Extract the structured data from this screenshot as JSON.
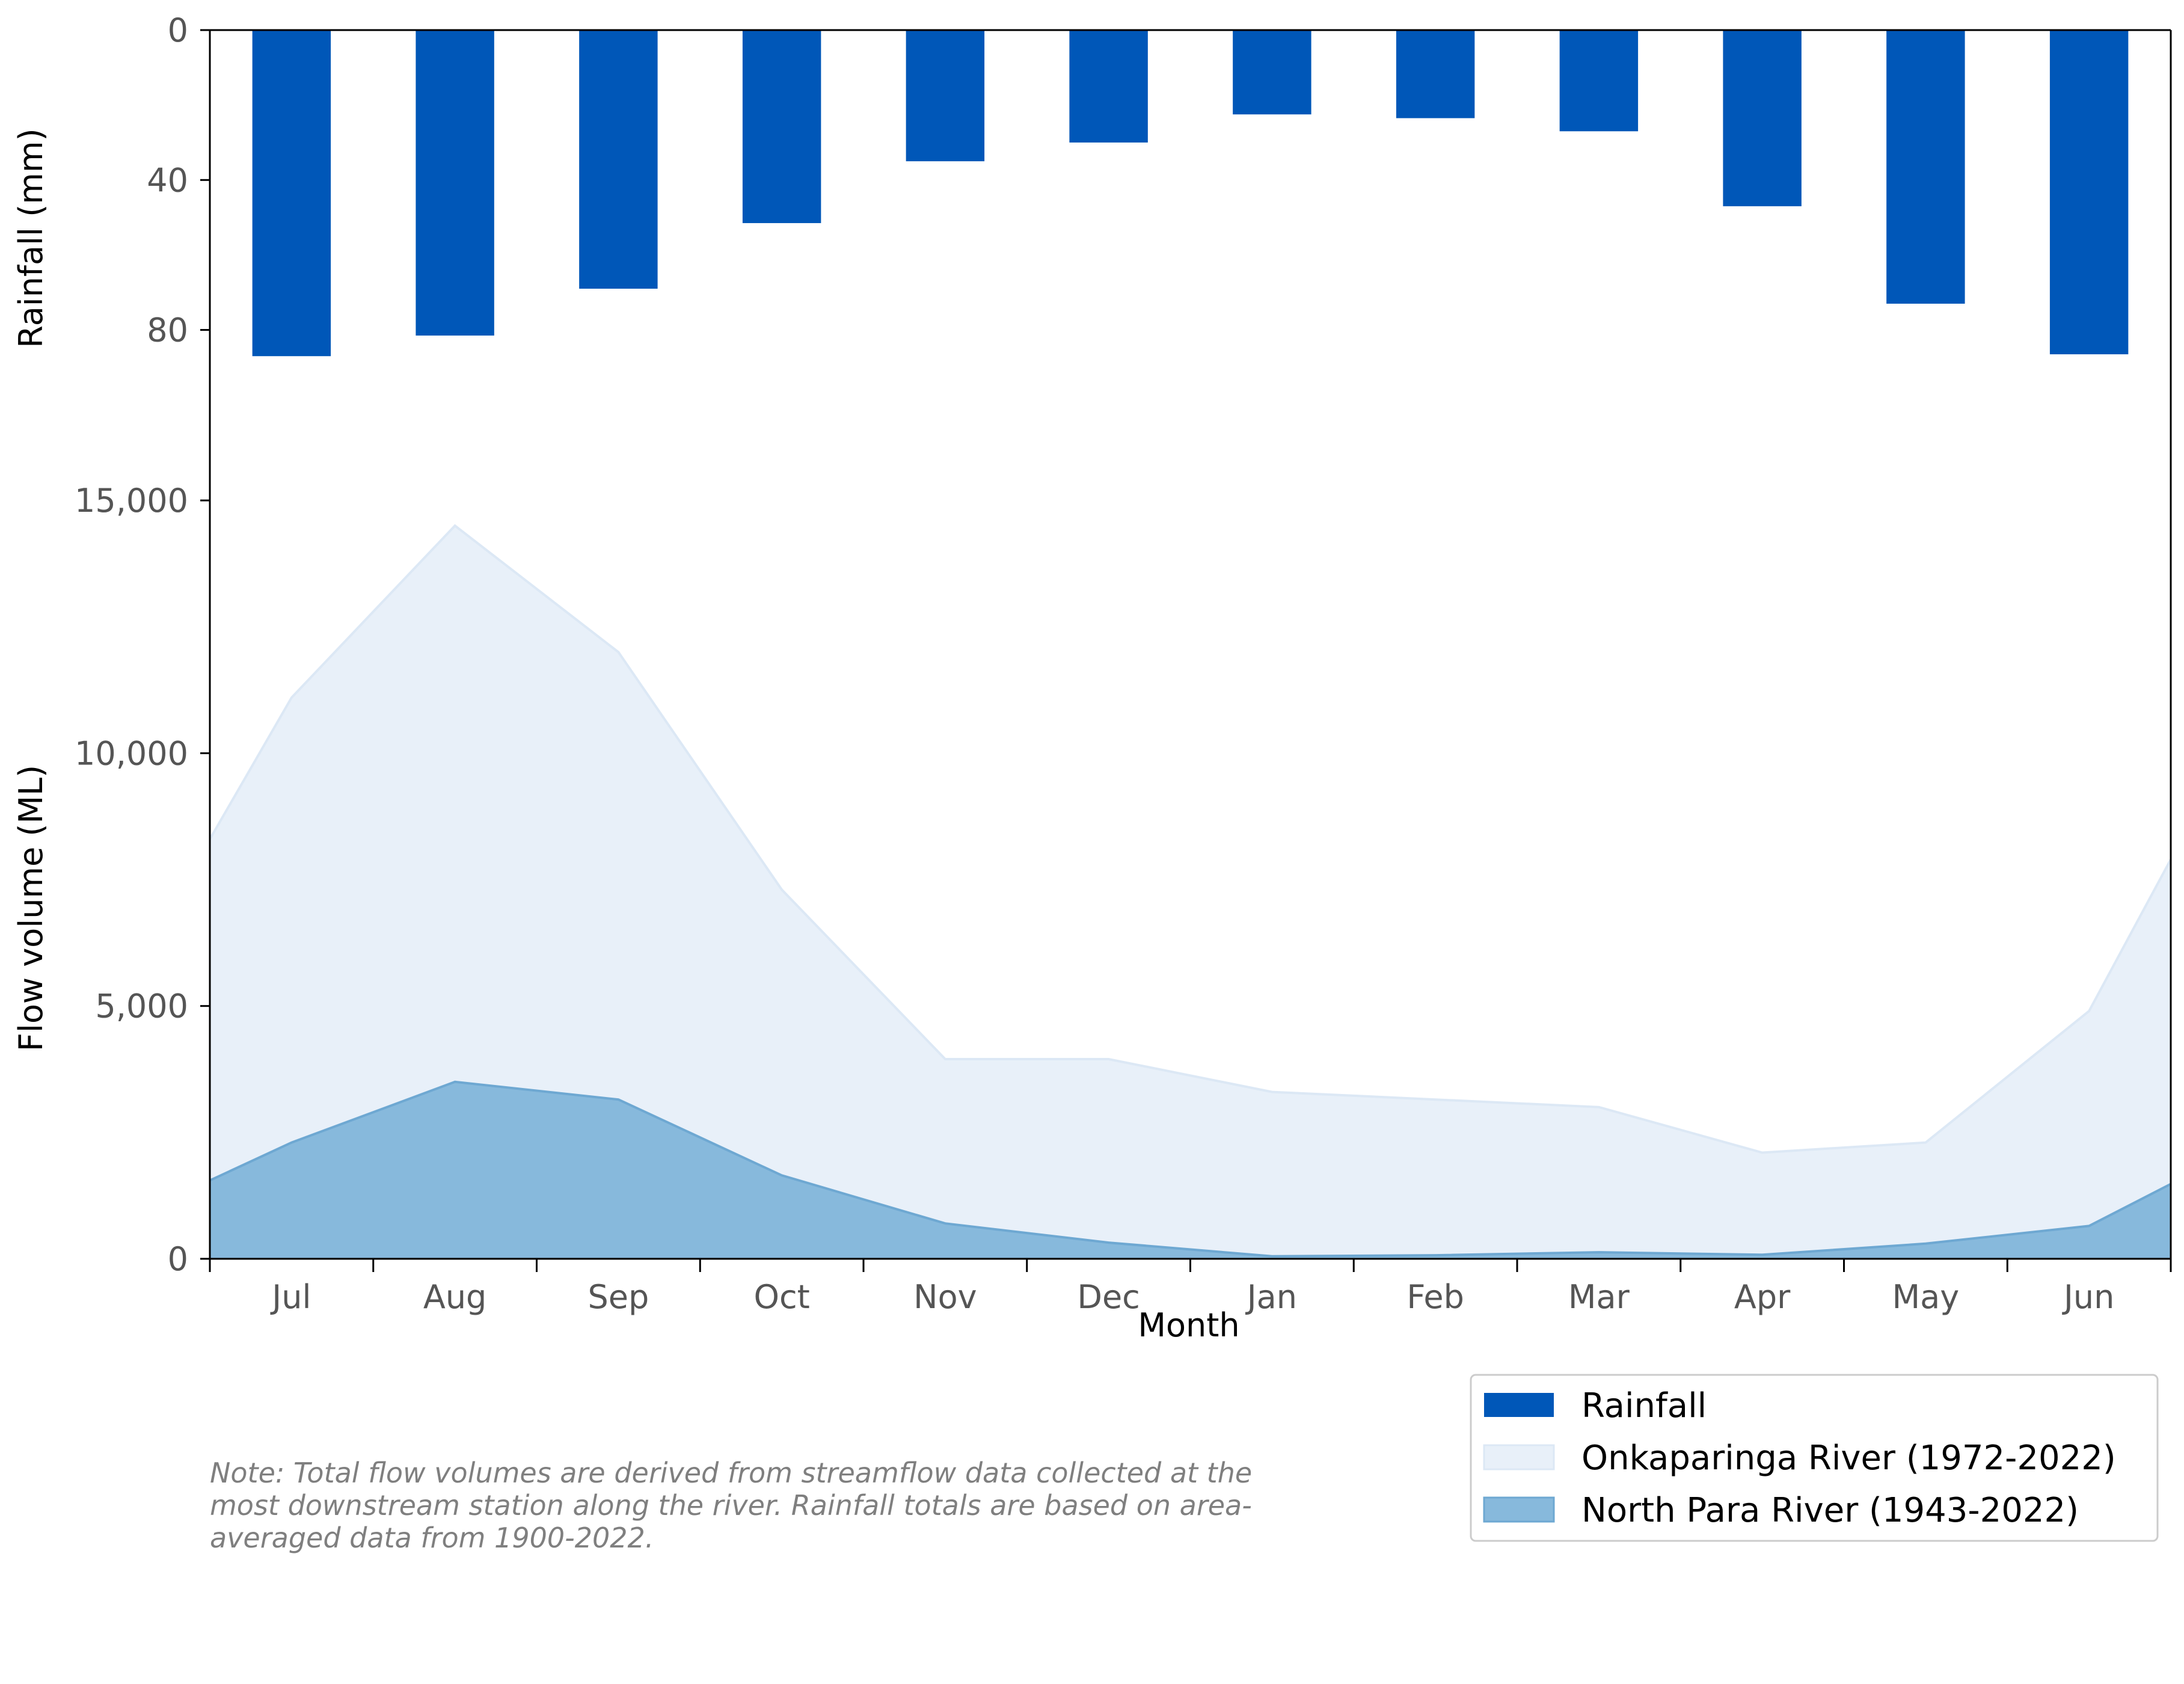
{
  "chart_data": [
    {
      "type": "bar",
      "panel": "top",
      "categories": [
        "Jul",
        "Aug",
        "Sep",
        "Oct",
        "Nov",
        "Dec",
        "Jan",
        "Feb",
        "Mar",
        "Apr",
        "May",
        "Jun"
      ],
      "series": [
        {
          "name": "Rainfall",
          "values": [
            87,
            81.5,
            69,
            51.5,
            35,
            30,
            22.5,
            23.5,
            27,
            47,
            73,
            86.5
          ]
        }
      ],
      "ylabel": "Rainfall (mm)",
      "ylim": [
        0,
        112
      ],
      "y_inverted": true,
      "yticks": [
        0,
        40,
        80
      ],
      "ytick_labels": [
        "0",
        "40",
        "80"
      ],
      "color": "#0057b8"
    },
    {
      "type": "area",
      "panel": "bottom",
      "categories": [
        "Jul",
        "Aug",
        "Sep",
        "Oct",
        "Nov",
        "Dec",
        "Jan",
        "Feb",
        "Mar",
        "Apr",
        "May",
        "Jun"
      ],
      "x_domain": [
        -0.5,
        11.5
      ],
      "series": [
        {
          "name": "Onkaparinga River (1972-2022)",
          "x": [
            -0.5,
            0,
            1,
            2,
            3,
            4,
            5,
            6,
            7,
            8,
            9,
            10,
            11,
            11.5
          ],
          "values": [
            8300,
            11100,
            14500,
            12000,
            7300,
            3950,
            3950,
            3300,
            3150,
            3000,
            2100,
            2300,
            4900,
            7900
          ],
          "color": "#e8f0f9"
        },
        {
          "name": "North Para River (1943-2022)",
          "x": [
            -0.5,
            0,
            1,
            2,
            3,
            4,
            5,
            6,
            7,
            8,
            9,
            10,
            11,
            11.5
          ],
          "values": [
            1550,
            2300,
            3500,
            3150,
            1650,
            700,
            320,
            50,
            70,
            130,
            80,
            300,
            650,
            1480
          ],
          "color": "#87b9dc"
        }
      ],
      "xlabel": "Month",
      "ylabel": "Flow volume (ML)",
      "ylim": [
        0,
        16000
      ],
      "yticks": [
        0,
        5000,
        10000,
        15000
      ],
      "ytick_labels": [
        "0",
        "5,000",
        "10,000",
        "15,000"
      ]
    }
  ],
  "legend": {
    "placement": "bottom-right",
    "entries": [
      {
        "label": "Rainfall",
        "color": "#0057b8"
      },
      {
        "label": "Onkaparinga River (1972-2022)",
        "color": "#e8f0f9"
      },
      {
        "label": "North Para River (1943-2022)",
        "color": "#87b9dc"
      }
    ]
  },
  "note": "Note: Total flow volumes are derived from streamflow data collected at the most downstream station along the river. Rainfall totals are based on area-averaged data from 1900-2022."
}
